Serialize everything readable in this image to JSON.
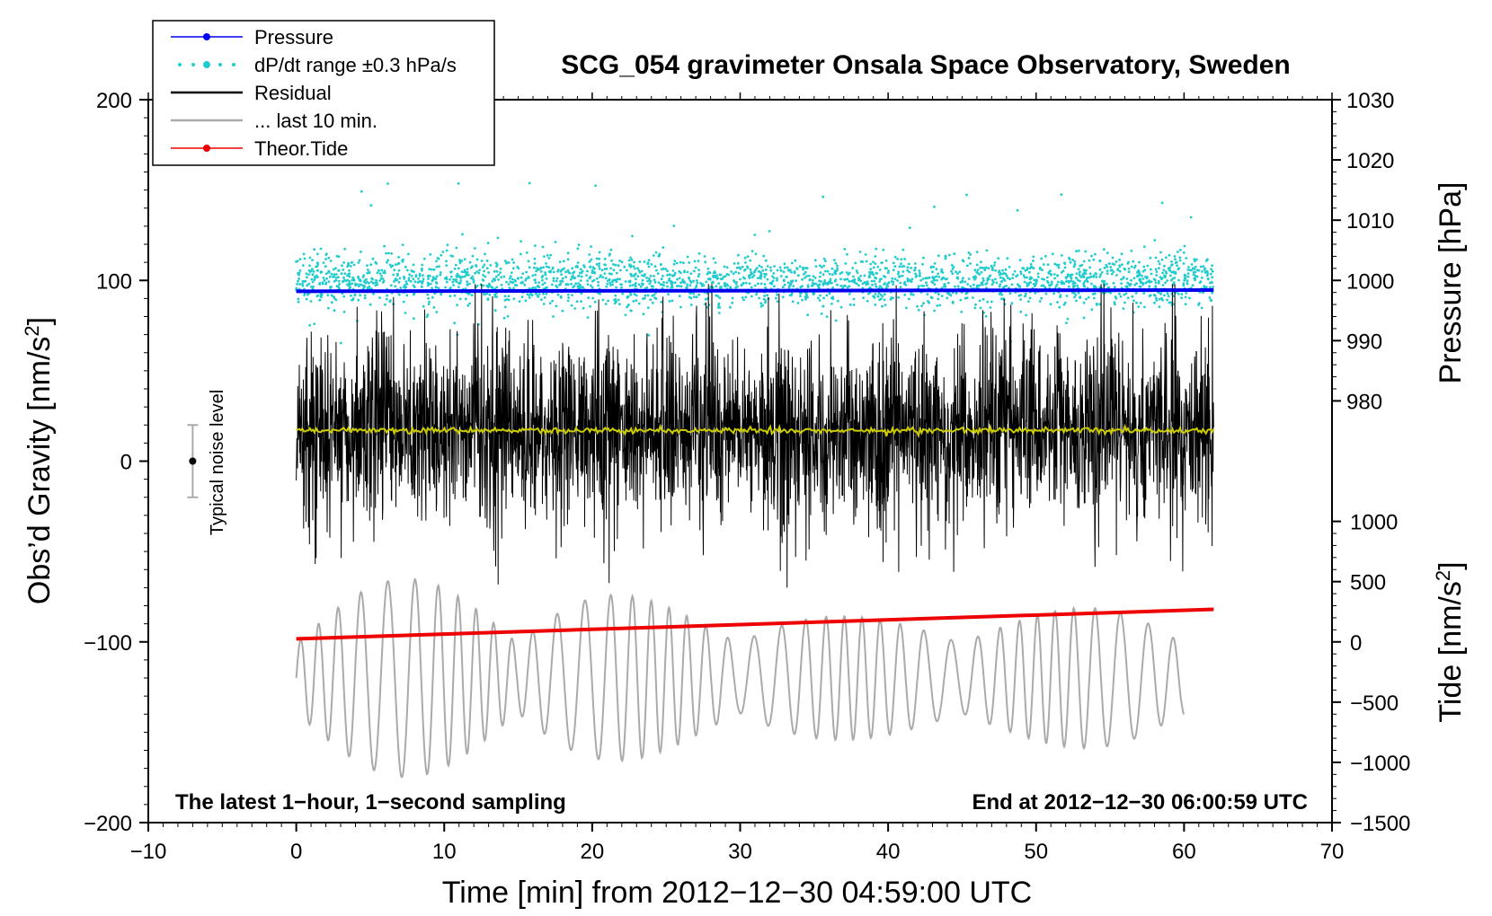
{
  "chart_data": {
    "type": "line",
    "title": "SCG_054 gravimeter Onsala Space Observatory, Sweden",
    "xlabel": "Time [min] from 2012−12−30 04:59:00 UTC",
    "ylabel_left": {
      "main": "Obs’d Gravity [nm/s",
      "sup": "2",
      "close": "]"
    },
    "ylabel_right_top": "Pressure [hPa]",
    "ylabel_right_bottom": {
      "main": "Tide [nm/s",
      "sup": "2",
      "close": "]"
    },
    "xlim": [
      -10,
      70
    ],
    "ylim_left": [
      -200,
      200
    ],
    "x_ticks": [
      "−10",
      "0",
      "10",
      "20",
      "30",
      "40",
      "50",
      "60",
      "70"
    ],
    "y_left_ticks": [
      "200",
      "100",
      "0",
      "−100",
      "−200"
    ],
    "pressure_ticks": [
      "1030",
      "1020",
      "1010",
      "1000",
      "990",
      "980"
    ],
    "tide_ticks": [
      "1000",
      "500",
      "0",
      "−500",
      "−1000",
      "−1500"
    ],
    "pressure_range": [
      970,
      1030
    ],
    "tide_range": [
      -1500,
      1000
    ],
    "annotations": {
      "left": "The latest 1−hour, 1−second sampling",
      "right": "End at 2012−12−30 06:00:59 UTC",
      "noise": "Typical noise level"
    },
    "legend": [
      {
        "label": "Pressure",
        "color": "#0000ee",
        "style": "line-marker"
      },
      {
        "label": "dP/dt range ±0.3 hPa/s",
        "color": "#22cccc",
        "style": "dots"
      },
      {
        "label": "Residual",
        "color": "#000000",
        "style": "line"
      },
      {
        "label": "... last 10 min.",
        "color": "#aaaaaa",
        "style": "line"
      },
      {
        "label": "Theor.Tide",
        "color": "#ee0000",
        "style": "line-marker"
      }
    ],
    "series": [
      {
        "name": "Pressure",
        "axis": "pressure_hPa",
        "x": [
          0,
          62
        ],
        "values": [
          998.2,
          998.4
        ]
      },
      {
        "name": "Theor.Tide",
        "axis": "tide_nm_s2",
        "x": [
          0,
          62
        ],
        "values": [
          25,
          270
        ]
      },
      {
        "name": "dP/dt range",
        "axis": "gravity_nm_s2",
        "x_range": [
          0,
          62
        ],
        "center": 100,
        "spread": 12
      },
      {
        "name": "Residual",
        "axis": "gravity_nm_s2",
        "x_range": [
          0,
          62
        ],
        "center": 17,
        "amplitude": 30
      },
      {
        "name": "Residual mean",
        "axis": "gravity_nm_s2",
        "x_range": [
          0,
          62
        ],
        "values_mean": 17
      },
      {
        "name": "... last 10 min.",
        "axis": "gravity_nm_s2",
        "x_range": [
          0,
          60
        ],
        "center": -120,
        "amplitude": 55
      },
      {
        "name": "Typical noise level",
        "axis": "gravity_nm_s2",
        "x": -7,
        "center": 0,
        "range": [
          -20,
          20
        ]
      }
    ]
  },
  "colors": {
    "pressure": "#0000ee",
    "dpdt": "#22cccc",
    "residual": "#000000",
    "residual_mean": "#cccc00",
    "last10": "#aaaaaa",
    "tide": "#ee0000"
  }
}
